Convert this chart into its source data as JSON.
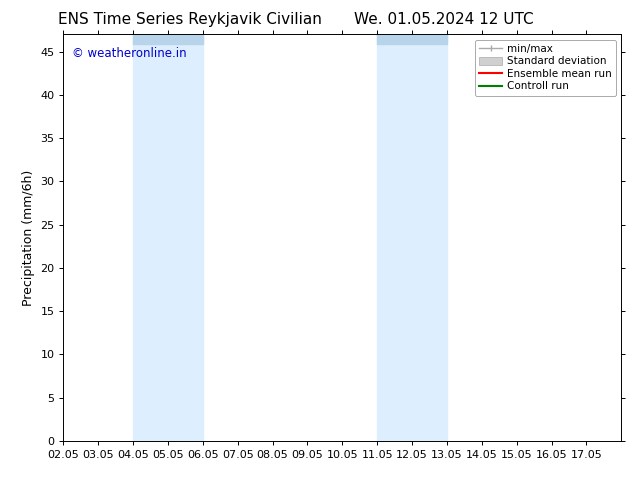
{
  "title_left": "ENS Time Series Reykjavik Civilian",
  "title_right": "We. 01.05.2024 12 UTC",
  "ylabel": "Precipitation (mm/6h)",
  "ylim": [
    0,
    47
  ],
  "yticks": [
    0,
    5,
    10,
    15,
    20,
    25,
    30,
    35,
    40,
    45
  ],
  "xtick_labels": [
    "02.05",
    "03.05",
    "04.05",
    "05.05",
    "06.05",
    "07.05",
    "08.05",
    "09.05",
    "10.05",
    "11.05",
    "12.05",
    "13.05",
    "14.05",
    "15.05",
    "16.05",
    "17.05"
  ],
  "xlim": [
    0,
    16
  ],
  "shaded_regions": [
    {
      "xmin": 2,
      "xmax": 4,
      "color": "#ddeeff"
    },
    {
      "xmin": 9,
      "xmax": 11,
      "color": "#ddeeff"
    }
  ],
  "top_bar_color": "#b8d4ea",
  "watermark_text": "© weatheronline.in",
  "watermark_color": "#0000cc",
  "background_color": "#ffffff",
  "legend_labels": [
    "min/max",
    "Standard deviation",
    "Ensemble mean run",
    "Controll run"
  ],
  "legend_colors": [
    "#999999",
    "#cccccc",
    "#ff0000",
    "#008000"
  ],
  "title_fontsize": 11,
  "axis_fontsize": 9,
  "tick_fontsize": 8
}
